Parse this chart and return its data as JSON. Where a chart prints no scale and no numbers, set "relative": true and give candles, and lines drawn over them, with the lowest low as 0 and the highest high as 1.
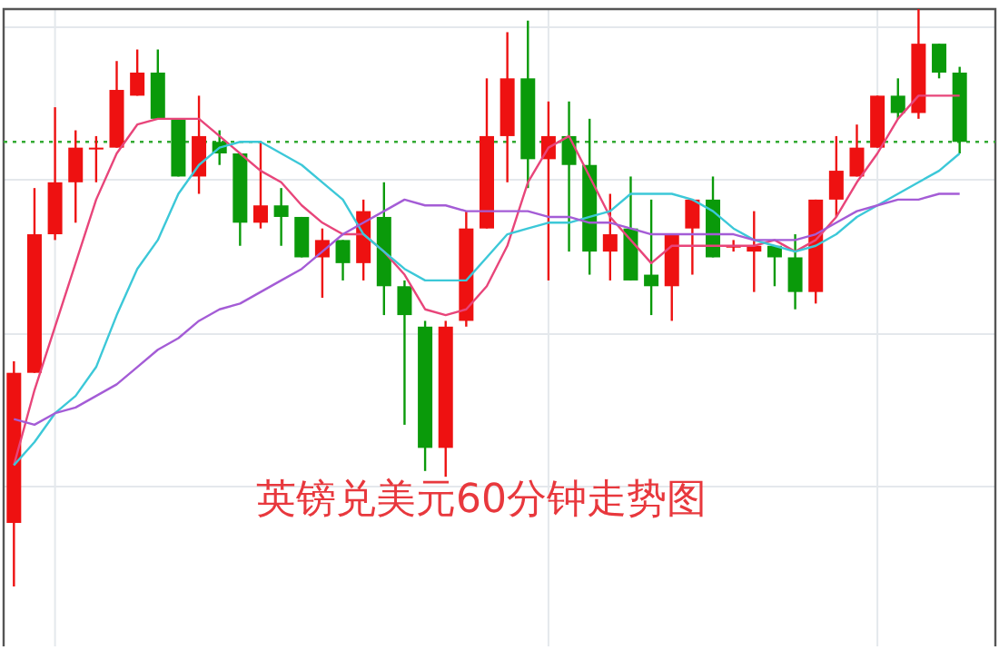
{
  "chart_data": {
    "type": "candlestick",
    "title": "英镑兑美元60分钟走势图",
    "relative": true,
    "grid": true,
    "categories": [
      null,
      null,
      null,
      null,
      null,
      null,
      null,
      null,
      null,
      null,
      null,
      null,
      null,
      null,
      null,
      null,
      null,
      null,
      null,
      null,
      null,
      null,
      null,
      null,
      null,
      null,
      null,
      null,
      null,
      null,
      null,
      null,
      null,
      null,
      null,
      null,
      null,
      null,
      null,
      null,
      null,
      null,
      null,
      null,
      null,
      null,
      null
    ],
    "ohlc": [
      [
        0.11,
        0.39,
        0,
        0.37
      ],
      [
        0.37,
        0.69,
        0.37,
        0.61
      ],
      [
        0.61,
        0.83,
        0.6,
        0.7
      ],
      [
        0.7,
        0.79,
        0.63,
        0.76
      ],
      [
        0.76,
        0.78,
        0.7,
        0.76
      ],
      [
        0.76,
        0.91,
        0.76,
        0.86
      ],
      [
        0.85,
        0.93,
        0.85,
        0.89
      ],
      [
        0.89,
        0.93,
        0.81,
        0.81
      ],
      [
        0.81,
        0.81,
        0.71,
        0.71
      ],
      [
        0.71,
        0.85,
        0.68,
        0.78
      ],
      [
        0.77,
        0.79,
        0.73,
        0.75
      ],
      [
        0.75,
        0.75,
        0.59,
        0.63
      ],
      [
        0.63,
        0.77,
        0.62,
        0.66
      ],
      [
        0.66,
        0.69,
        0.59,
        0.64
      ],
      [
        0.64,
        0.64,
        0.57,
        0.57
      ],
      [
        0.57,
        0.62,
        0.5,
        0.6
      ],
      [
        0.6,
        0.6,
        0.53,
        0.56
      ],
      [
        0.56,
        0.67,
        0.53,
        0.65
      ],
      [
        0.64,
        0.7,
        0.47,
        0.52
      ],
      [
        0.52,
        0.53,
        0.28,
        0.47
      ],
      [
        0.45,
        0.46,
        0.2,
        0.24
      ],
      [
        0.24,
        0.46,
        0.19,
        0.45
      ],
      [
        0.46,
        0.65,
        0.45,
        0.62
      ],
      [
        0.62,
        0.88,
        0.62,
        0.78
      ],
      [
        0.78,
        0.96,
        0.7,
        0.88
      ],
      [
        0.88,
        0.98,
        0.69,
        0.74
      ],
      [
        0.74,
        0.84,
        0.53,
        0.78
      ],
      [
        0.78,
        0.84,
        0.58,
        0.73
      ],
      [
        0.73,
        0.81,
        0.54,
        0.58
      ],
      [
        0.58,
        0.68,
        0.53,
        0.61
      ],
      [
        0.62,
        0.71,
        0.53,
        0.53
      ],
      [
        0.54,
        0.67,
        0.47,
        0.52
      ],
      [
        0.52,
        0.61,
        0.46,
        0.61
      ],
      [
        0.62,
        0.67,
        0.54,
        0.67
      ],
      [
        0.67,
        0.71,
        0.57,
        0.57
      ],
      [
        0.59,
        0.6,
        0.58,
        0.59
      ],
      [
        0.58,
        0.65,
        0.51,
        0.59
      ],
      [
        0.59,
        0.59,
        0.52,
        0.57
      ],
      [
        0.57,
        0.61,
        0.48,
        0.51
      ],
      [
        0.51,
        0.67,
        0.49,
        0.67
      ],
      [
        0.67,
        0.78,
        0.64,
        0.72
      ],
      [
        0.71,
        0.8,
        0.71,
        0.76
      ],
      [
        0.76,
        0.85,
        0.76,
        0.85
      ],
      [
        0.85,
        0.88,
        0.81,
        0.82
      ],
      [
        0.82,
        1.0,
        0.81,
        0.94
      ],
      [
        0.94,
        0.94,
        0.88,
        0.89
      ],
      [
        0.89,
        0.9,
        0.75,
        0.77
      ]
    ],
    "series": [
      {
        "type": "line",
        "color": "#e8457a",
        "values": [
          0.21,
          0.34,
          0.45,
          0.56,
          0.67,
          0.75,
          0.8,
          0.81,
          0.81,
          0.81,
          0.78,
          0.75,
          0.72,
          0.7,
          0.66,
          0.63,
          0.61,
          0.61,
          0.58,
          0.54,
          0.48,
          0.47,
          0.48,
          0.52,
          0.59,
          0.7,
          0.76,
          0.78,
          0.71,
          0.64,
          0.6,
          0.56,
          0.59,
          0.59,
          0.59,
          0.59,
          0.59,
          0.6,
          0.58,
          0.6,
          0.64,
          0.7,
          0.75,
          0.81,
          0.85,
          0.85,
          0.85
        ]
      },
      {
        "type": "line",
        "color": "#3cc8d8",
        "values": [
          0.21,
          0.25,
          0.3,
          0.33,
          0.38,
          0.47,
          0.55,
          0.6,
          0.68,
          0.73,
          0.76,
          0.77,
          0.77,
          0.75,
          0.73,
          0.7,
          0.67,
          0.61,
          0.58,
          0.55,
          0.53,
          0.53,
          0.53,
          0.57,
          0.61,
          0.62,
          0.63,
          0.63,
          0.64,
          0.65,
          0.68,
          0.68,
          0.68,
          0.67,
          0.65,
          0.62,
          0.6,
          0.59,
          0.58,
          0.59,
          0.61,
          0.64,
          0.66,
          0.68,
          0.7,
          0.72,
          0.75
        ]
      },
      {
        "type": "line",
        "color": "#a45cd6",
        "values": [
          0.29,
          0.28,
          0.3,
          0.31,
          0.33,
          0.35,
          0.38,
          0.41,
          0.43,
          0.46,
          0.48,
          0.49,
          0.51,
          0.53,
          0.55,
          0.58,
          0.61,
          0.63,
          0.65,
          0.67,
          0.66,
          0.66,
          0.65,
          0.65,
          0.65,
          0.65,
          0.64,
          0.64,
          0.63,
          0.63,
          0.62,
          0.61,
          0.61,
          0.61,
          0.61,
          0.61,
          0.6,
          0.6,
          0.6,
          0.61,
          0.63,
          0.65,
          0.66,
          0.67,
          0.67,
          0.68,
          0.68
        ]
      }
    ],
    "ref_lines": [
      {
        "axis": "y",
        "value": 0.77,
        "color": "#33aa33",
        "line_style": "dotted"
      }
    ]
  }
}
